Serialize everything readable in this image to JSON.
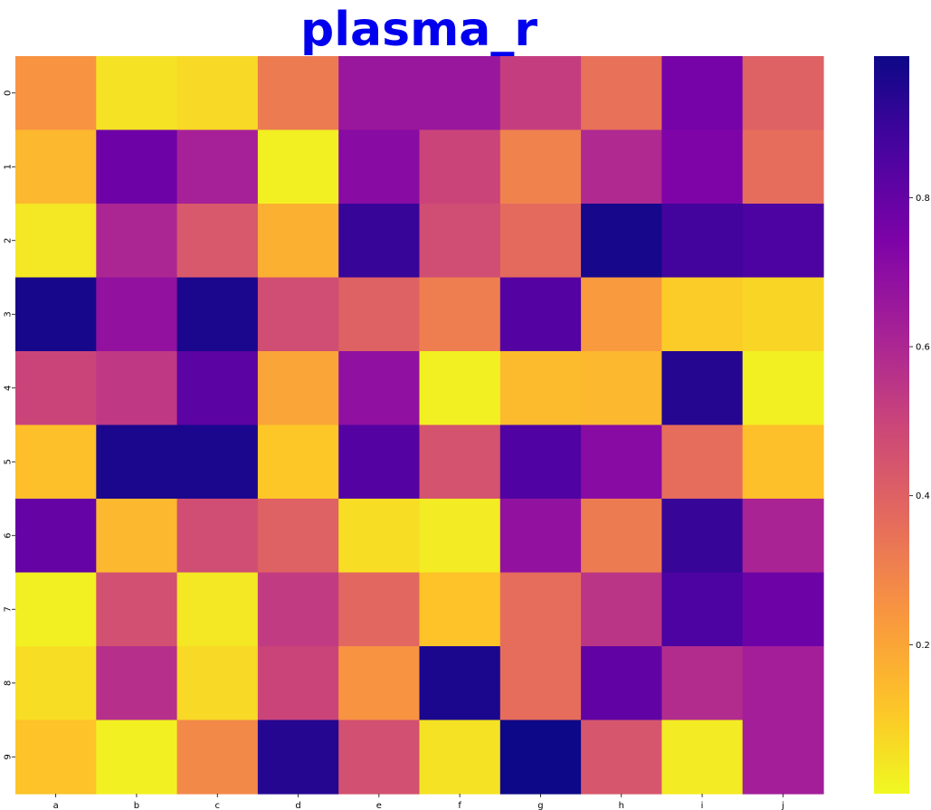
{
  "chart_data": {
    "type": "heatmap",
    "title": "plasma_r",
    "colormap": "plasma_r",
    "title_color": "#0000ee",
    "x_labels": [
      "a",
      "b",
      "c",
      "d",
      "e",
      "f",
      "g",
      "h",
      "i",
      "j"
    ],
    "y_labels": [
      "0",
      "1",
      "2",
      "3",
      "4",
      "5",
      "6",
      "7",
      "8",
      "9"
    ],
    "values": [
      [
        0.25,
        0.05,
        0.07,
        0.32,
        0.66,
        0.66,
        0.52,
        0.35,
        0.76,
        0.4
      ],
      [
        0.15,
        0.78,
        0.62,
        0.02,
        0.71,
        0.5,
        0.3,
        0.59,
        0.74,
        0.36
      ],
      [
        0.04,
        0.6,
        0.43,
        0.17,
        0.9,
        0.47,
        0.37,
        0.97,
        0.88,
        0.86
      ],
      [
        0.97,
        0.68,
        0.96,
        0.47,
        0.4,
        0.31,
        0.84,
        0.23,
        0.1,
        0.08
      ],
      [
        0.5,
        0.54,
        0.82,
        0.2,
        0.69,
        0.02,
        0.14,
        0.15,
        0.94,
        0.02
      ],
      [
        0.13,
        0.96,
        0.96,
        0.11,
        0.84,
        0.45,
        0.85,
        0.71,
        0.36,
        0.13
      ],
      [
        0.8,
        0.15,
        0.47,
        0.4,
        0.06,
        0.03,
        0.68,
        0.32,
        0.9,
        0.61
      ],
      [
        0.02,
        0.46,
        0.04,
        0.53,
        0.38,
        0.12,
        0.36,
        0.55,
        0.86,
        0.78
      ],
      [
        0.06,
        0.57,
        0.07,
        0.5,
        0.25,
        0.96,
        0.36,
        0.81,
        0.58,
        0.63
      ],
      [
        0.12,
        0.02,
        0.28,
        0.94,
        0.46,
        0.05,
        0.99,
        0.44,
        0.03,
        0.63
      ]
    ],
    "colorbar_ticks": [
      0.2,
      0.4,
      0.6,
      0.8
    ],
    "colorbar_range": [
      0.0,
      0.99
    ],
    "grid": false
  }
}
